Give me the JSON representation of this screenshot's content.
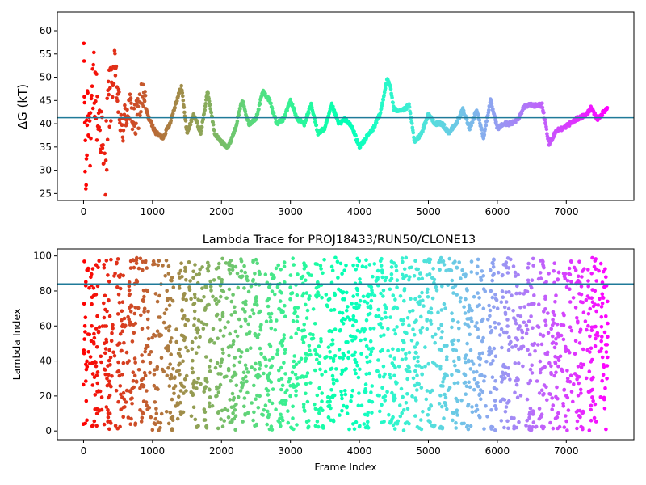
{
  "chart_data": [
    {
      "type": "scatter",
      "title": "",
      "xlabel": "",
      "ylabel": "ΔG (kT)",
      "xlim": [
        -380,
        7980
      ],
      "ylim": [
        23.5,
        64
      ],
      "xticks": [
        0,
        1000,
        2000,
        3000,
        4000,
        5000,
        6000,
        7000
      ],
      "yticks": [
        25,
        30,
        35,
        40,
        45,
        50,
        55,
        60
      ],
      "hline": 41.3,
      "hline_color": "#1f7a99",
      "colormap": "rainbow (red at frame 0 → violet at last frame)",
      "x_max": 7600,
      "trace": [
        [
          0,
          62
        ],
        [
          30,
          24
        ],
        [
          60,
          48
        ],
        [
          100,
          35
        ],
        [
          150,
          50
        ],
        [
          200,
          42
        ],
        [
          250,
          40
        ],
        [
          300,
          26
        ],
        [
          360,
          44
        ],
        [
          450,
          52
        ],
        [
          550,
          38
        ],
        [
          650,
          44
        ],
        [
          750,
          40
        ],
        [
          850,
          46
        ],
        [
          950,
          41
        ],
        [
          1050,
          38
        ],
        [
          1150,
          37
        ],
        [
          1250,
          40
        ],
        [
          1350,
          45
        ],
        [
          1420,
          48
        ],
        [
          1500,
          38
        ],
        [
          1600,
          42
        ],
        [
          1700,
          38
        ],
        [
          1800,
          47
        ],
        [
          1900,
          38
        ],
        [
          2000,
          36
        ],
        [
          2100,
          35
        ],
        [
          2200,
          39
        ],
        [
          2300,
          45
        ],
        [
          2400,
          40
        ],
        [
          2500,
          41
        ],
        [
          2600,
          47
        ],
        [
          2700,
          45
        ],
        [
          2800,
          40
        ],
        [
          2900,
          41
        ],
        [
          3000,
          45
        ],
        [
          3100,
          41
        ],
        [
          3200,
          40
        ],
        [
          3300,
          44
        ],
        [
          3400,
          38
        ],
        [
          3500,
          39
        ],
        [
          3600,
          44
        ],
        [
          3700,
          40
        ],
        [
          3800,
          41
        ],
        [
          3900,
          39
        ],
        [
          4000,
          35
        ],
        [
          4100,
          37
        ],
        [
          4200,
          39
        ],
        [
          4300,
          42
        ],
        [
          4400,
          49.5
        ],
        [
          4450,
          48
        ],
        [
          4500,
          43
        ],
        [
          4650,
          43
        ],
        [
          4720,
          44
        ],
        [
          4800,
          36
        ],
        [
          4900,
          38
        ],
        [
          5000,
          42
        ],
        [
          5100,
          40
        ],
        [
          5200,
          40
        ],
        [
          5300,
          38
        ],
        [
          5400,
          40
        ],
        [
          5500,
          43
        ],
        [
          5600,
          39
        ],
        [
          5700,
          43
        ],
        [
          5800,
          37
        ],
        [
          5900,
          45
        ],
        [
          6000,
          39
        ],
        [
          6100,
          40
        ],
        [
          6200,
          40
        ],
        [
          6300,
          41
        ],
        [
          6400,
          44
        ],
        [
          6550,
          44
        ],
        [
          6650,
          44
        ],
        [
          6750,
          35.5
        ],
        [
          6850,
          38.5
        ],
        [
          6950,
          39
        ],
        [
          7050,
          40
        ],
        [
          7150,
          41
        ],
        [
          7300,
          42
        ],
        [
          7350,
          43.5
        ],
        [
          7450,
          41
        ],
        [
          7600,
          43.5
        ]
      ]
    },
    {
      "type": "scatter",
      "title": "Lambda Trace for PROJ18433/RUN50/CLONE13",
      "xlabel": "Frame Index",
      "ylabel": "Lambda Index",
      "xlim": [
        -380,
        7980
      ],
      "ylim": [
        -5,
        104
      ],
      "xticks": [
        0,
        1000,
        2000,
        3000,
        4000,
        5000,
        6000,
        7000
      ],
      "yticks": [
        0,
        20,
        40,
        60,
        80,
        100
      ],
      "hline": 84,
      "hline_color": "#1f7a99",
      "colormap": "rainbow (red at frame 0 → violet at last frame)",
      "x_max": 7600,
      "value_range": [
        0,
        99
      ]
    }
  ]
}
